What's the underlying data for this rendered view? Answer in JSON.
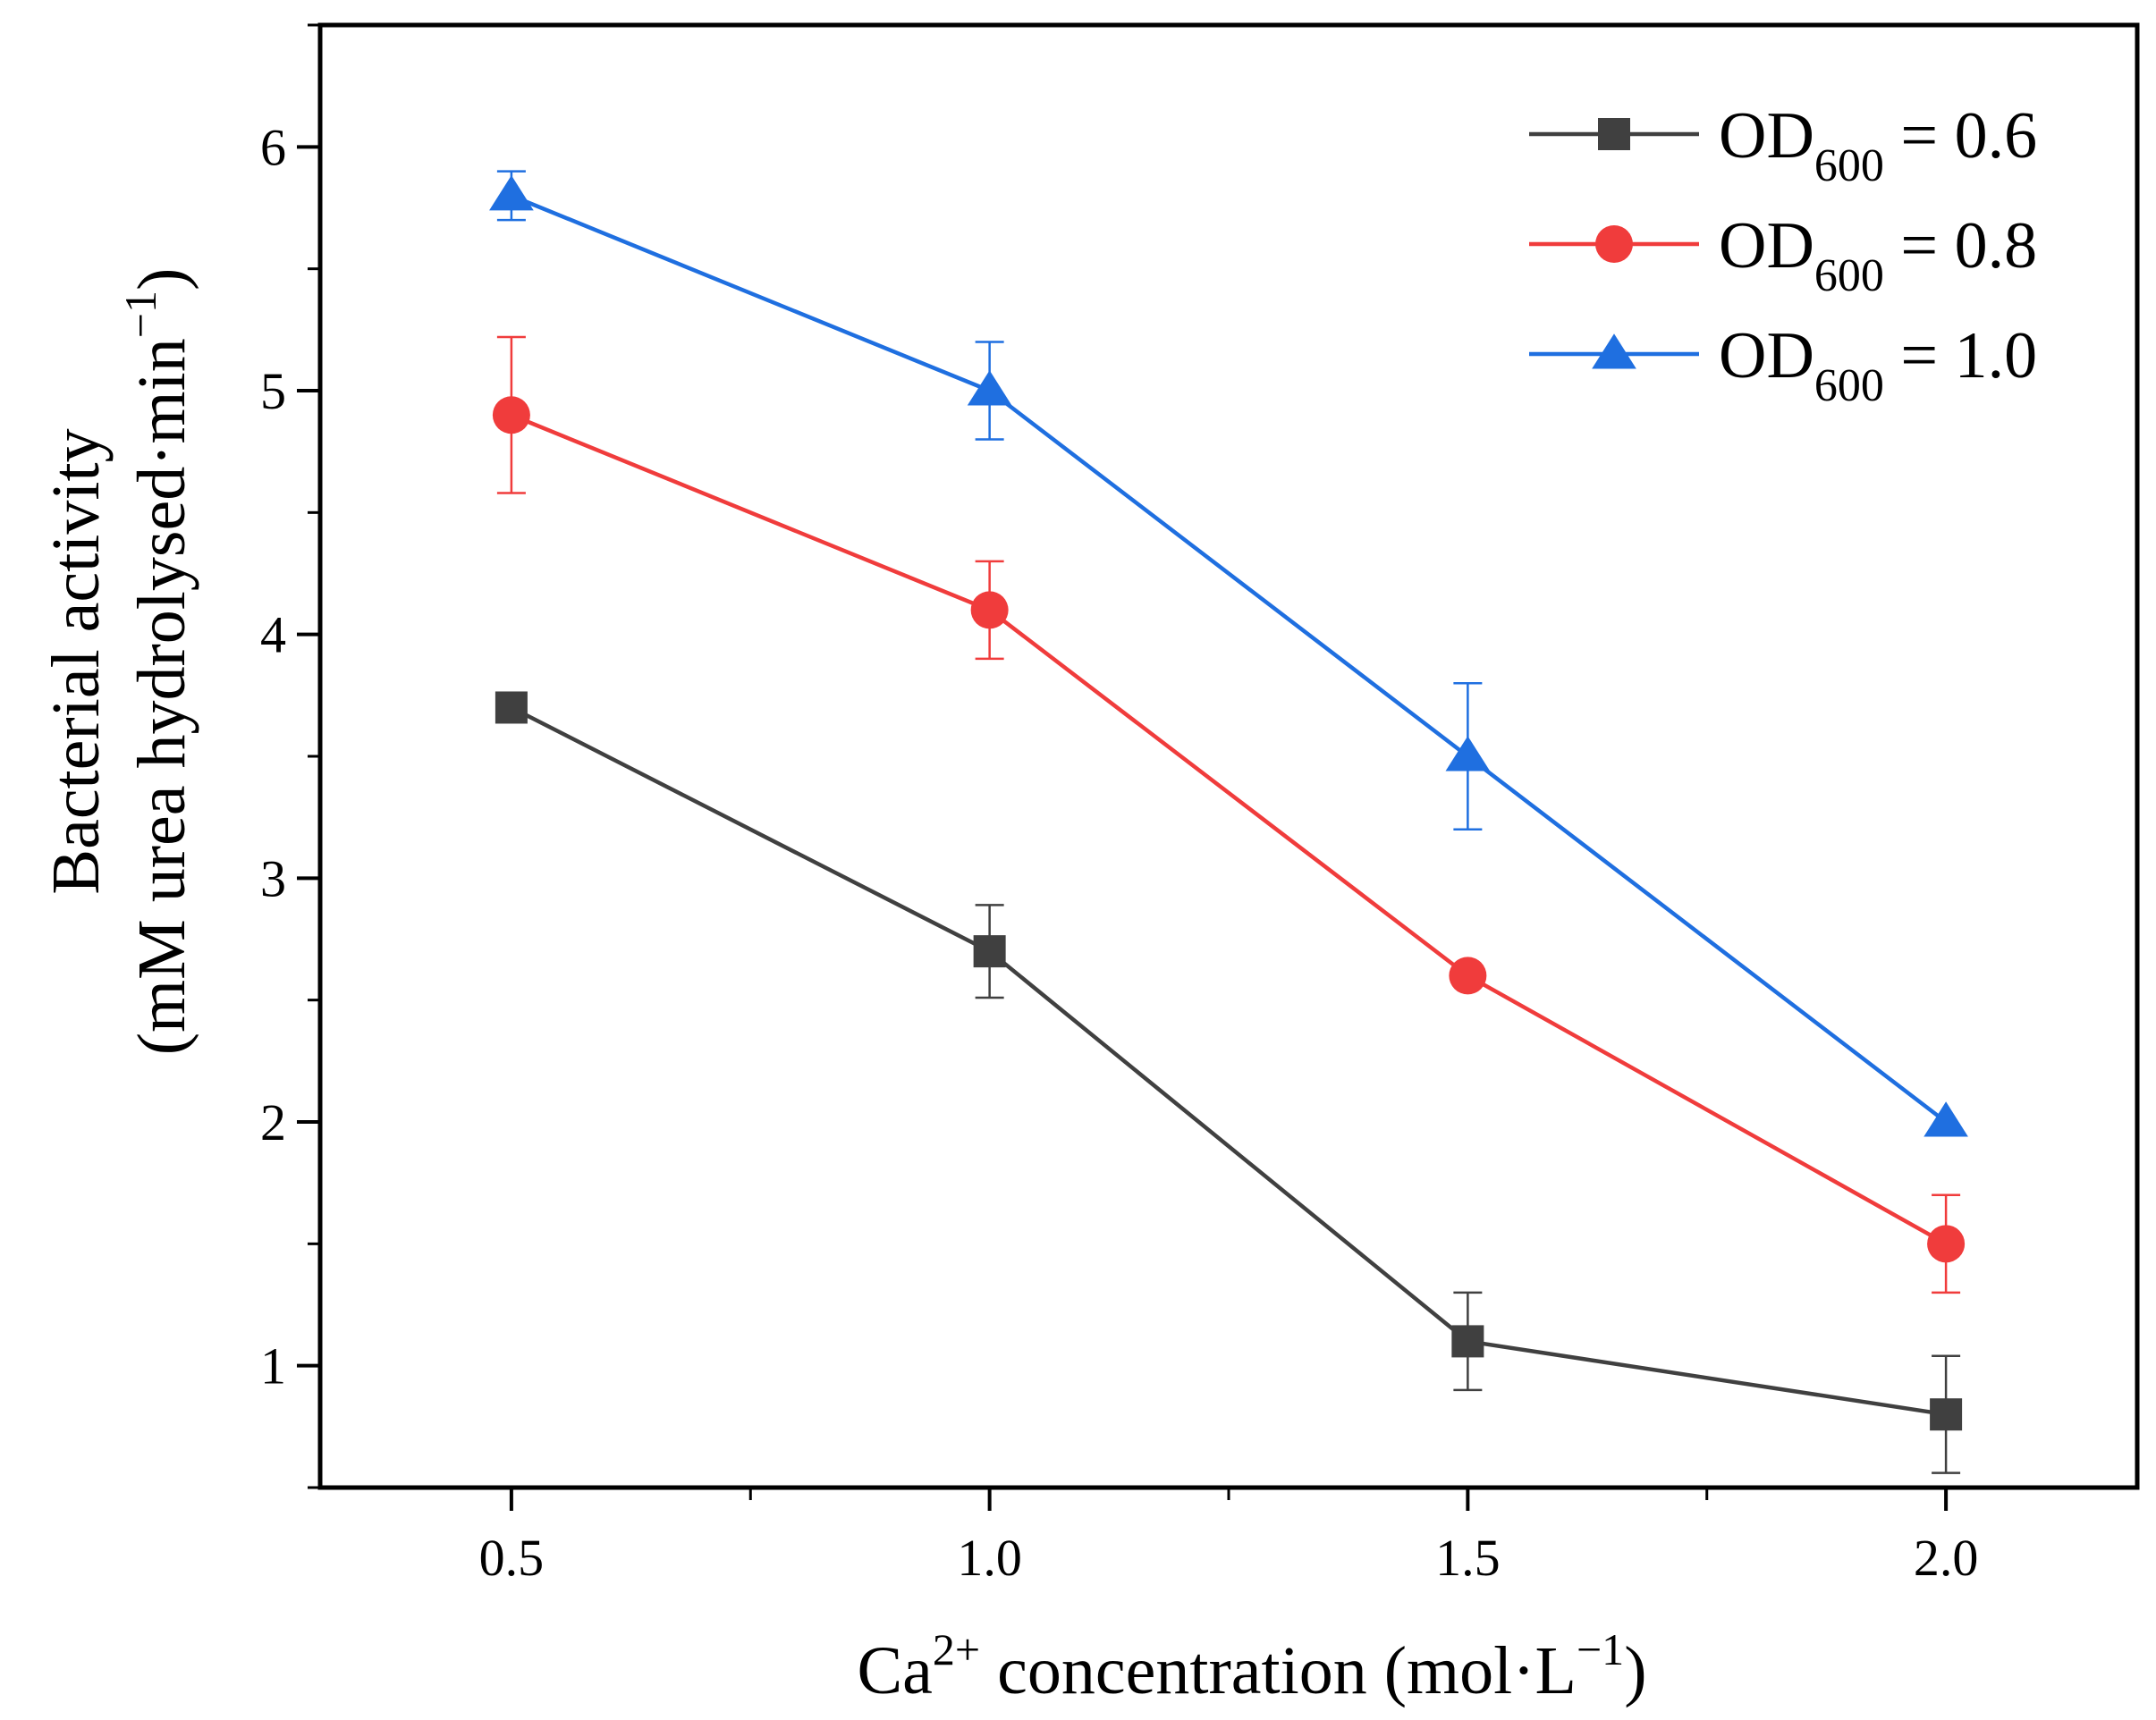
{
  "chart_data": {
    "type": "line",
    "title": "",
    "x": [
      0.5,
      1.0,
      1.5,
      2.0
    ],
    "x_tick_labels": [
      "0.5",
      "1.0",
      "1.5",
      "2.0"
    ],
    "y_ticks": [
      1,
      2,
      3,
      4,
      5,
      6
    ],
    "y_tick_labels": [
      "1",
      "2",
      "3",
      "4",
      "5",
      "6"
    ],
    "xlim": [
      0.3,
      2.2
    ],
    "ylim": [
      0.5,
      6.5
    ],
    "xlabel": {
      "base": "Ca",
      "sup": "2+",
      "rest": " concentration (mol·L",
      "sup2": "−1",
      "tail": ")"
    },
    "ylabel": {
      "line1": "Bacterial activity",
      "line2_main": "(mM urea hydrolysed·min",
      "line2_sup": "−1",
      "line2_tail": ")"
    },
    "grid": false,
    "legend_position": "top-right",
    "series": [
      {
        "name": "OD600 = 0.6",
        "legend_main": "OD",
        "legend_sub": "600",
        "legend_value": " = 0.6",
        "marker": "square",
        "color": "#404040",
        "values": [
          3.7,
          2.7,
          1.1,
          0.8
        ],
        "errors": [
          0.0,
          0.19,
          0.2,
          0.24
        ]
      },
      {
        "name": "OD600 = 0.8",
        "legend_main": "OD",
        "legend_sub": "600",
        "legend_value": " = 0.8",
        "marker": "circle",
        "color": "#f03c3c",
        "values": [
          4.9,
          4.1,
          2.6,
          1.5
        ],
        "errors": [
          0.32,
          0.2,
          0.0,
          0.2
        ]
      },
      {
        "name": "OD600 = 1.0",
        "legend_main": "OD",
        "legend_sub": "600",
        "legend_value": " = 1.0",
        "marker": "triangle",
        "color": "#1f6fe0",
        "values": [
          5.8,
          5.0,
          3.5,
          2.0
        ],
        "errors": [
          0.1,
          0.2,
          0.3,
          0.0
        ]
      }
    ]
  }
}
